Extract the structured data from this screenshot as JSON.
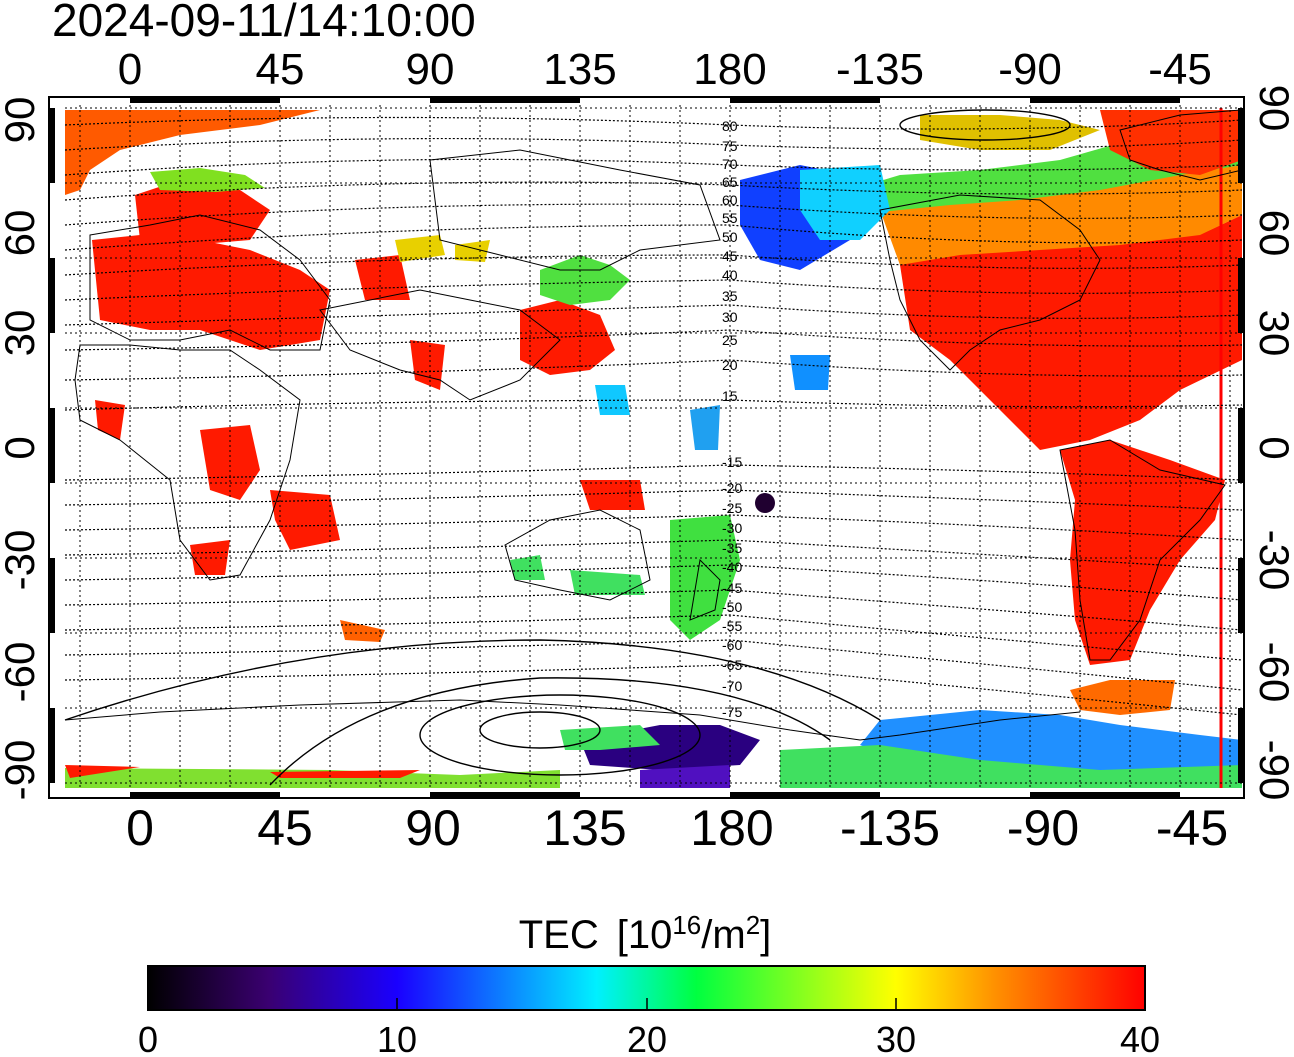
{
  "timestamp": "2024-09-11/14:10:00",
  "map": {
    "top_longitude_labels": [
      "0",
      "45",
      "90",
      "135",
      "180",
      "-135",
      "-90",
      "-45"
    ],
    "bottom_longitude_labels": [
      "0",
      "45",
      "90",
      "135",
      "180",
      "-135",
      "-90",
      "-45"
    ],
    "left_latitude_labels": [
      "90",
      "60",
      "30",
      "0",
      "-30",
      "-60",
      "-90"
    ],
    "right_latitude_labels": [
      "90",
      "60",
      "30",
      "0",
      "-30",
      "-60",
      "-90"
    ],
    "contour_labels": [
      "80",
      "75",
      "70",
      "65",
      "60",
      "55",
      "50",
      "45",
      "40",
      "35",
      "30",
      "25",
      "20",
      "15",
      "-15",
      "-20",
      "-25",
      "-30",
      "-35",
      "-40",
      "-45",
      "-50",
      "-55",
      "-60",
      "-65",
      "-70",
      "-75"
    ]
  },
  "colorbar": {
    "title": "TEC",
    "unit_open": "[10",
    "unit_sup1": "16",
    "unit_mid": "/m",
    "unit_sup2": "2",
    "unit_close": "]",
    "tick_labels": [
      "0",
      "10",
      "20",
      "30",
      "40"
    ],
    "min": 0,
    "max": 40,
    "colormap": [
      "#000000",
      "#3a0070",
      "#1a00ff",
      "#00c8ff",
      "#00ff40",
      "#ffff00",
      "#ff8000",
      "#ff0000"
    ]
  },
  "colors": {
    "high_tec": "#ff1a00",
    "mid_tec": "#40e040",
    "low_tec": "#1040ff"
  }
}
